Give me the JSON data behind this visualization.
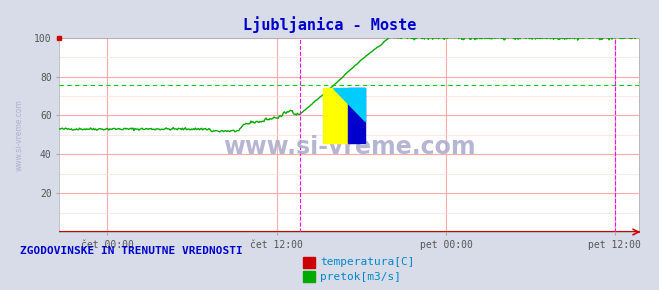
{
  "title": "Ljubljanica - Moste",
  "title_color": "#0000cc",
  "bg_color": "#d8dce8",
  "plot_bg_color": "#ffffff",
  "grid_color_major": "#ffaaaa",
  "grid_color_minor": "#ffdddd",
  "yticks": [
    20,
    40,
    60,
    80,
    100
  ],
  "xtick_labels": [
    "čet 00:00",
    "čet 12:00",
    "pet 00:00",
    "pet 12:00"
  ],
  "xtick_positions": [
    0.083,
    0.375,
    0.667,
    0.958
  ],
  "watermark": "www.si-vreme.com",
  "watermark_color": "#aaaacc",
  "legend_label1": "temperatura[C]",
  "legend_label2": "pretok[m3/s]",
  "legend_color1": "#cc0000",
  "legend_color2": "#00aa00",
  "footer_text": "ZGODOVINSKE IN TRENUTNE VREDNOSTI",
  "footer_color": "#0000cc",
  "red_line_color": "#cc0000",
  "magenta_line_color": "#ff00ff",
  "green_line_color": "#00aa00",
  "avg_line_color": "#00cc00",
  "left_watermark": "www.si-vreme.com",
  "left_watermark_color": "#aaaacc",
  "total_points": 576
}
